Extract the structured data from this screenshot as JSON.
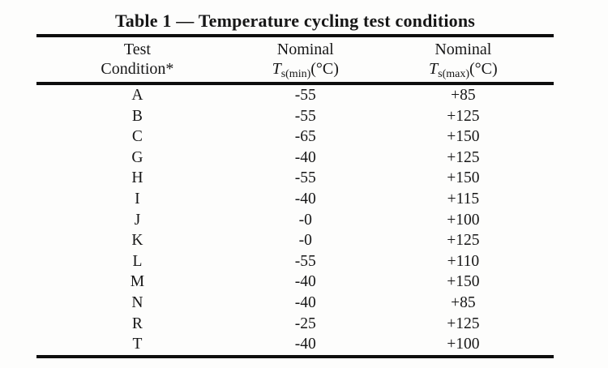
{
  "table": {
    "title": "Table 1 — Temperature cycling test conditions",
    "columns": [
      {
        "line1": "Test",
        "line2": "Condition*"
      },
      {
        "line1": "Nominal",
        "symbol": "T",
        "subscript": "s(min)",
        "unit": "(°C)"
      },
      {
        "line1": "Nominal",
        "symbol": "T",
        "subscript": "s(max)",
        "unit": "(°C)"
      }
    ],
    "rows": [
      {
        "condition": "A",
        "tmin": "-55",
        "tmax": "+85"
      },
      {
        "condition": "B",
        "tmin": "-55",
        "tmax": "+125"
      },
      {
        "condition": "C",
        "tmin": "-65",
        "tmax": "+150"
      },
      {
        "condition": "G",
        "tmin": "-40",
        "tmax": "+125"
      },
      {
        "condition": "H",
        "tmin": "-55",
        "tmax": "+150"
      },
      {
        "condition": "I",
        "tmin": "-40",
        "tmax": "+115"
      },
      {
        "condition": "J",
        "tmin": "-0",
        "tmax": "+100"
      },
      {
        "condition": "K",
        "tmin": "-0",
        "tmax": "+125"
      },
      {
        "condition": "L",
        "tmin": "-55",
        "tmax": "+110"
      },
      {
        "condition": "M",
        "tmin": "-40",
        "tmax": "+150"
      },
      {
        "condition": "N",
        "tmin": "-40",
        "tmax": "+85"
      },
      {
        "condition": "R",
        "tmin": "-25",
        "tmax": "+125"
      },
      {
        "condition": "T",
        "tmin": "-40",
        "tmax": "+100"
      }
    ],
    "colors": {
      "text": "#161616",
      "rule": "#0e0e0e",
      "background": "#fdfdfc"
    }
  }
}
